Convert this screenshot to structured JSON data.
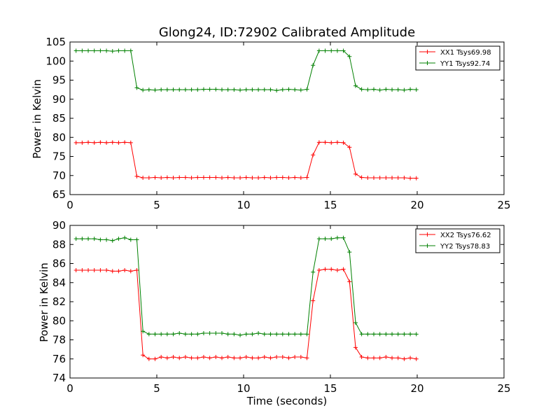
{
  "chart_data": [
    {
      "type": "line",
      "title": "Glong24, ID:72902 Calibrated Amplitude",
      "xlabel": "",
      "ylabel": "Power in Kelvin",
      "xlim": [
        0,
        25
      ],
      "ylim": [
        65,
        105
      ],
      "xticks": [
        0,
        5,
        10,
        15,
        20,
        25
      ],
      "yticks": [
        65,
        70,
        75,
        80,
        85,
        90,
        95,
        100,
        105
      ],
      "grid": false,
      "legend_position": "top-right",
      "marker": "+",
      "x": [
        0.35,
        0.7,
        1.05,
        1.4,
        1.75,
        2.1,
        2.45,
        2.8,
        3.15,
        3.5,
        3.85,
        4.2,
        4.55,
        4.9,
        5.25,
        5.6,
        5.95,
        6.3,
        6.65,
        7.0,
        7.35,
        7.7,
        8.05,
        8.4,
        8.75,
        9.1,
        9.45,
        9.8,
        10.15,
        10.5,
        10.85,
        11.2,
        11.55,
        11.9,
        12.25,
        12.6,
        12.95,
        13.3,
        13.65,
        14.0,
        14.35,
        14.7,
        15.05,
        15.4,
        15.75,
        16.1,
        16.45,
        16.8,
        17.15,
        17.5,
        17.85,
        18.2,
        18.55,
        18.9,
        19.25,
        19.6,
        19.95
      ],
      "series": [
        {
          "name": "XX1 Tsys69.98",
          "color": "#ff0000",
          "values": [
            78.6,
            78.6,
            78.7,
            78.6,
            78.7,
            78.6,
            78.7,
            78.6,
            78.7,
            78.6,
            69.8,
            69.4,
            69.4,
            69.5,
            69.4,
            69.5,
            69.4,
            69.5,
            69.5,
            69.4,
            69.5,
            69.5,
            69.5,
            69.5,
            69.4,
            69.5,
            69.4,
            69.4,
            69.5,
            69.4,
            69.4,
            69.5,
            69.4,
            69.5,
            69.5,
            69.4,
            69.5,
            69.4,
            69.5,
            75.4,
            78.7,
            78.7,
            78.6,
            78.7,
            78.6,
            77.4,
            70.4,
            69.5,
            69.4,
            69.4,
            69.4,
            69.4,
            69.4,
            69.4,
            69.4,
            69.3,
            69.3
          ]
        },
        {
          "name": "YY1 Tsys92.74",
          "color": "#008000",
          "values": [
            102.7,
            102.7,
            102.7,
            102.7,
            102.7,
            102.7,
            102.6,
            102.7,
            102.7,
            102.7,
            93.0,
            92.4,
            92.5,
            92.4,
            92.5,
            92.5,
            92.5,
            92.5,
            92.5,
            92.5,
            92.5,
            92.6,
            92.6,
            92.6,
            92.5,
            92.5,
            92.5,
            92.4,
            92.5,
            92.5,
            92.5,
            92.5,
            92.5,
            92.3,
            92.5,
            92.6,
            92.5,
            92.4,
            92.6,
            98.9,
            102.7,
            102.7,
            102.7,
            102.7,
            102.7,
            101.2,
            93.5,
            92.6,
            92.5,
            92.6,
            92.4,
            92.6,
            92.5,
            92.5,
            92.4,
            92.6,
            92.5
          ]
        }
      ]
    },
    {
      "type": "line",
      "title": "",
      "xlabel": "Time (seconds)",
      "ylabel": "Power in Kelvin",
      "xlim": [
        0,
        25
      ],
      "ylim": [
        74,
        90
      ],
      "xticks": [
        0,
        5,
        10,
        15,
        20,
        25
      ],
      "yticks": [
        74,
        76,
        78,
        80,
        82,
        84,
        86,
        88,
        90
      ],
      "grid": false,
      "legend_position": "top-right",
      "marker": "+",
      "x": [
        0.35,
        0.7,
        1.05,
        1.4,
        1.75,
        2.1,
        2.45,
        2.8,
        3.15,
        3.5,
        3.85,
        4.2,
        4.55,
        4.9,
        5.25,
        5.6,
        5.95,
        6.3,
        6.65,
        7.0,
        7.35,
        7.7,
        8.05,
        8.4,
        8.75,
        9.1,
        9.45,
        9.8,
        10.15,
        10.5,
        10.85,
        11.2,
        11.55,
        11.9,
        12.25,
        12.6,
        12.95,
        13.3,
        13.65,
        14.0,
        14.35,
        14.7,
        15.05,
        15.4,
        15.75,
        16.1,
        16.45,
        16.8,
        17.15,
        17.5,
        17.85,
        18.2,
        18.55,
        18.9,
        19.25,
        19.6,
        19.95
      ],
      "series": [
        {
          "name": "XX2 Tsys76.62",
          "color": "#ff0000",
          "values": [
            85.3,
            85.3,
            85.3,
            85.3,
            85.3,
            85.3,
            85.2,
            85.2,
            85.3,
            85.2,
            85.3,
            76.4,
            76.0,
            76.0,
            76.2,
            76.1,
            76.2,
            76.1,
            76.2,
            76.1,
            76.1,
            76.2,
            76.1,
            76.2,
            76.1,
            76.2,
            76.1,
            76.1,
            76.2,
            76.1,
            76.1,
            76.2,
            76.1,
            76.2,
            76.2,
            76.1,
            76.2,
            76.2,
            76.1,
            82.1,
            85.3,
            85.4,
            85.4,
            85.3,
            85.4,
            84.1,
            77.2,
            76.2,
            76.1,
            76.1,
            76.1,
            76.2,
            76.1,
            76.1,
            76.0,
            76.1,
            76.0
          ]
        },
        {
          "name": "YY2 Tsys78.83",
          "color": "#008000",
          "values": [
            88.6,
            88.6,
            88.6,
            88.6,
            88.5,
            88.5,
            88.4,
            88.6,
            88.7,
            88.5,
            88.5,
            78.9,
            78.6,
            78.6,
            78.6,
            78.6,
            78.6,
            78.7,
            78.6,
            78.6,
            78.6,
            78.7,
            78.7,
            78.7,
            78.7,
            78.6,
            78.6,
            78.5,
            78.6,
            78.6,
            78.7,
            78.6,
            78.6,
            78.6,
            78.6,
            78.6,
            78.6,
            78.6,
            78.6,
            85.1,
            88.6,
            88.6,
            88.6,
            88.7,
            88.7,
            87.2,
            79.8,
            78.6,
            78.6,
            78.6,
            78.6,
            78.6,
            78.6,
            78.6,
            78.6,
            78.6,
            78.6
          ]
        }
      ]
    }
  ]
}
